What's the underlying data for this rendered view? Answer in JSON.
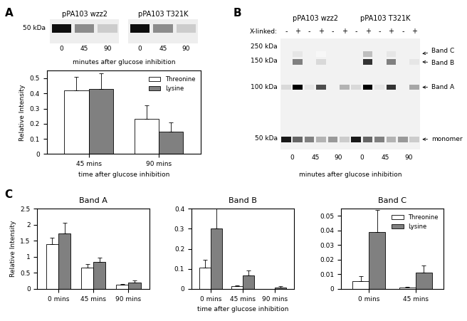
{
  "panel_labels": [
    "A",
    "B",
    "C"
  ],
  "blot_a": {
    "samples": [
      "pPA103 wzz2",
      "pPA103 T321K"
    ],
    "times": [
      "0",
      "45",
      "90"
    ],
    "marker": "50 kDa",
    "caption": "minutes after glucose inhibition"
  },
  "blot_b": {
    "samples": [
      "pPA103 wzz2",
      "pPA103 T321K"
    ],
    "crosslink_label": "X-linked:",
    "crosslink_marks": [
      "-",
      "+"
    ],
    "times": [
      "0",
      "45",
      "90"
    ],
    "ladder": [
      "250 kDa",
      "150 kDa",
      "100 kDa",
      "50 kDa"
    ],
    "band_labels": [
      "Band C",
      "Band B",
      "Band A",
      "monomer"
    ],
    "caption": "minutes after glucose inhibition"
  },
  "chart_data": [
    {
      "type": "bar",
      "categories": [
        "45 mins",
        "90 mins"
      ],
      "xlabel": "time after glucose inhibition",
      "ylabel": "Relative Intensity",
      "ylim": [
        0,
        0.55
      ],
      "yticks": [
        0,
        0.1,
        0.2,
        0.3,
        0.4,
        0.5
      ],
      "grid": false,
      "legend": "upper right",
      "series": [
        {
          "name": "Threonine",
          "color": "#ffffff",
          "values": [
            0.42,
            0.23
          ],
          "errors": [
            0.09,
            0.09
          ]
        },
        {
          "name": "Lysine",
          "color": "#808080",
          "values": [
            0.43,
            0.15
          ],
          "errors": [
            0.1,
            0.06
          ]
        }
      ]
    },
    {
      "type": "bar",
      "title": "Band A",
      "categories": [
        "0 mins",
        "45 mins",
        "90 mins"
      ],
      "ylabel": "Relative Intensity",
      "ylim": [
        0,
        2.5
      ],
      "yticks": [
        0,
        0.5,
        1,
        1.5,
        2,
        2.5
      ],
      "grid": false,
      "series": [
        {
          "name": "Threonine",
          "color": "#ffffff",
          "values": [
            1.4,
            0.66,
            0.12
          ],
          "errors": [
            0.2,
            0.12,
            0.04
          ]
        },
        {
          "name": "Lysine",
          "color": "#808080",
          "values": [
            1.72,
            0.84,
            0.2
          ],
          "errors": [
            0.33,
            0.14,
            0.07
          ]
        }
      ]
    },
    {
      "type": "bar",
      "title": "Band B",
      "categories": [
        "0 mins",
        "45 mins",
        "90 mins"
      ],
      "xlabel": "time after glucose inhibition",
      "ylim": [
        0,
        0.4
      ],
      "yticks": [
        0,
        0.1,
        0.2,
        0.3,
        0.4
      ],
      "grid": false,
      "series": [
        {
          "name": "Threonine",
          "color": "#ffffff",
          "values": [
            0.105,
            0.013,
            0.0
          ],
          "errors": [
            0.04,
            0.006,
            0.0
          ]
        },
        {
          "name": "Lysine",
          "color": "#808080",
          "values": [
            0.3,
            0.068,
            0.008
          ],
          "errors": [
            0.1,
            0.025,
            0.005
          ]
        }
      ]
    },
    {
      "type": "bar",
      "title": "Band C",
      "categories": [
        "0 mins",
        "45 mins"
      ],
      "ylim": [
        0,
        0.055
      ],
      "yticks": [
        0,
        0.01,
        0.02,
        0.03,
        0.04,
        0.05
      ],
      "grid": false,
      "legend": "upper right",
      "series": [
        {
          "name": "Threonine",
          "color": "#ffffff",
          "values": [
            0.0055,
            0.0008
          ],
          "errors": [
            0.003,
            0.0005
          ]
        },
        {
          "name": "Lysine",
          "color": "#808080",
          "values": [
            0.039,
            0.011
          ],
          "errors": [
            0.015,
            0.005
          ]
        }
      ]
    }
  ]
}
